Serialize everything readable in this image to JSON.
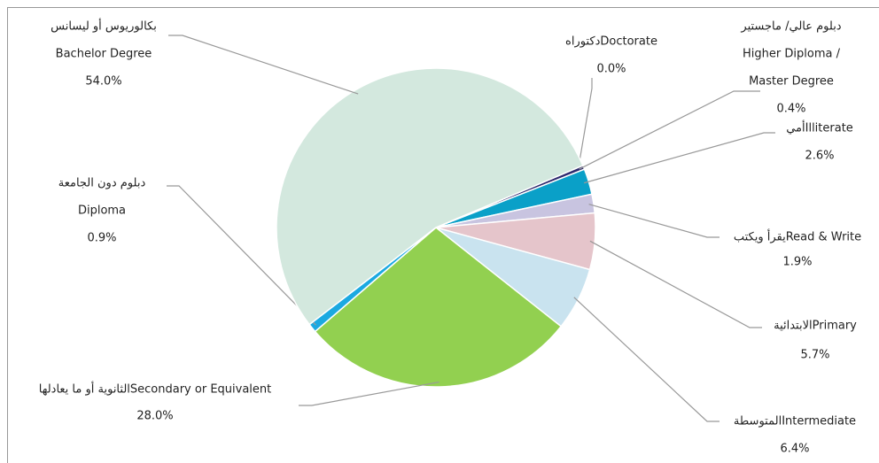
{
  "chart_data": {
    "type": "pie",
    "categories": [
      [
        "دكتوراهDoctorate"
      ],
      [
        "دبلوم عالي/ ماجستير",
        "Higher Diploma /",
        "Master Degree"
      ],
      [
        "أميIlliterate"
      ],
      [
        "يقرأ ويكتبRead & Write"
      ],
      [
        "الابتدائيةPrimary"
      ],
      [
        "المتوسطةIntermediate"
      ],
      [
        "الثانوية أو ما يعادلهاSecondary or Equivalent"
      ],
      [
        "دبلوم دون الجامعة",
        "Diploma"
      ],
      [
        "بكالوريوس أو ليسانس",
        "Bachelor Degree"
      ]
    ],
    "values": [
      0.0,
      0.4,
      2.6,
      1.9,
      5.7,
      6.4,
      28.0,
      0.9,
      54.0
    ],
    "value_labels": [
      "0.0%",
      "0.4%",
      "2.6%",
      "1.9%",
      "5.7%",
      "6.4%",
      "28.0%",
      "0.9%",
      "54.0%"
    ],
    "colors": [
      "#7b3f9e",
      "#2e2a6e",
      "#0aa0c8",
      "#c8c4e0",
      "#e5c5cb",
      "#c9e3ef",
      "#92d050",
      "#1ba9e1",
      "#d3e8de"
    ]
  }
}
